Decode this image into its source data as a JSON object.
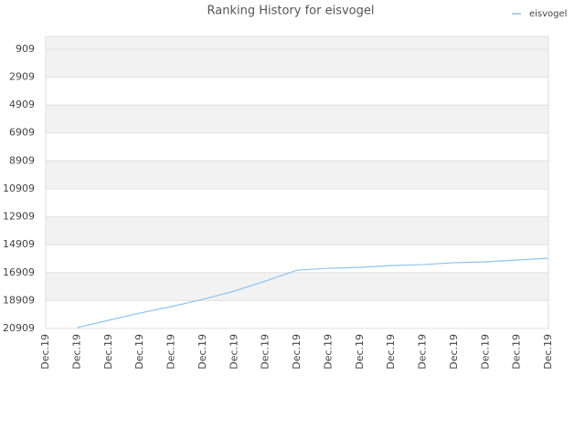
{
  "chart_data": {
    "type": "line",
    "title": "Ranking History for eisvogel",
    "categories": [
      "Dec.19",
      "Dec.19",
      "Dec.19",
      "Dec.19",
      "Dec.19",
      "Dec.19",
      "Dec.19",
      "Dec.19",
      "Dec.19",
      "Dec.19",
      "Dec.19",
      "Dec.19",
      "Dec.19",
      "Dec.19",
      "Dec.19",
      "Dec.19",
      "Dec.19"
    ],
    "series": [
      {
        "name": "eisvogel",
        "color": "#90c3ee",
        "values": [
          null,
          20850,
          20320,
          19800,
          19340,
          18820,
          18230,
          17510,
          16730,
          16600,
          16530,
          16400,
          16330,
          16200,
          16140,
          16010,
          15880
        ]
      }
    ],
    "ylim": [
      20909,
      0
    ],
    "yticks": [
      909,
      2909,
      4909,
      6909,
      8909,
      10909,
      12909,
      14909,
      16909,
      18909,
      20909
    ],
    "grid": true,
    "legend": "top-right"
  }
}
